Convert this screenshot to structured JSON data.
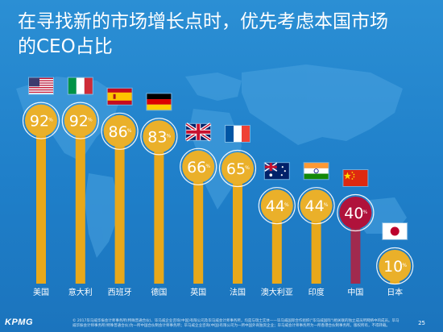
{
  "title": "在寻找新的市场增长点时，优先考虑本国市场的CEO占比",
  "colors": {
    "background": "#1f7fc9",
    "bar_default": "#e8a81a",
    "bar_highlight": "#a12a4e",
    "circle_default": "#eab02a",
    "circle_highlight": "#b0123b",
    "text": "#ffffff"
  },
  "chart_data": {
    "type": "bar",
    "title": "在寻找新的市场增长点时，优先考虑本国市场的CEO占比",
    "xlabel": "",
    "ylabel": "",
    "unit": "%",
    "ylim": [
      0,
      100
    ],
    "categories": [
      "美国",
      "意大利",
      "西班牙",
      "德国",
      "英国",
      "法国",
      "澳大利亚",
      "印度",
      "中国",
      "日本"
    ],
    "values": [
      92,
      92,
      86,
      83,
      66,
      65,
      44,
      44,
      40,
      10
    ],
    "flag_icons": [
      "us-flag-icon",
      "italy-flag-icon",
      "spain-flag-icon",
      "germany-flag-icon",
      "uk-flag-icon",
      "france-flag-icon",
      "australia-flag-icon",
      "india-flag-icon",
      "china-flag-icon",
      "japan-flag-icon"
    ],
    "highlight": "中国",
    "grid": false
  },
  "footer": {
    "logo": "KPMG",
    "note": "© 2017毕马威华振会计师事务所(特殊普通合伙)、毕马威企业咨询(中国)有限公司及毕马威会计师事务所，均是与瑞士实体——毕马威国际合作组织(\"毕马威国际\")相关联的独立成员所网络中的成员。毕马威华振会计师事务所(特殊普通合伙)为一所中国合伙制会计师事务所；毕马威企业咨询(中国)有限公司为一所中国外商独资企业；毕马威会计师事务所为一所香港合伙制事务所。版权所有，不得转载。",
    "page": "25"
  }
}
